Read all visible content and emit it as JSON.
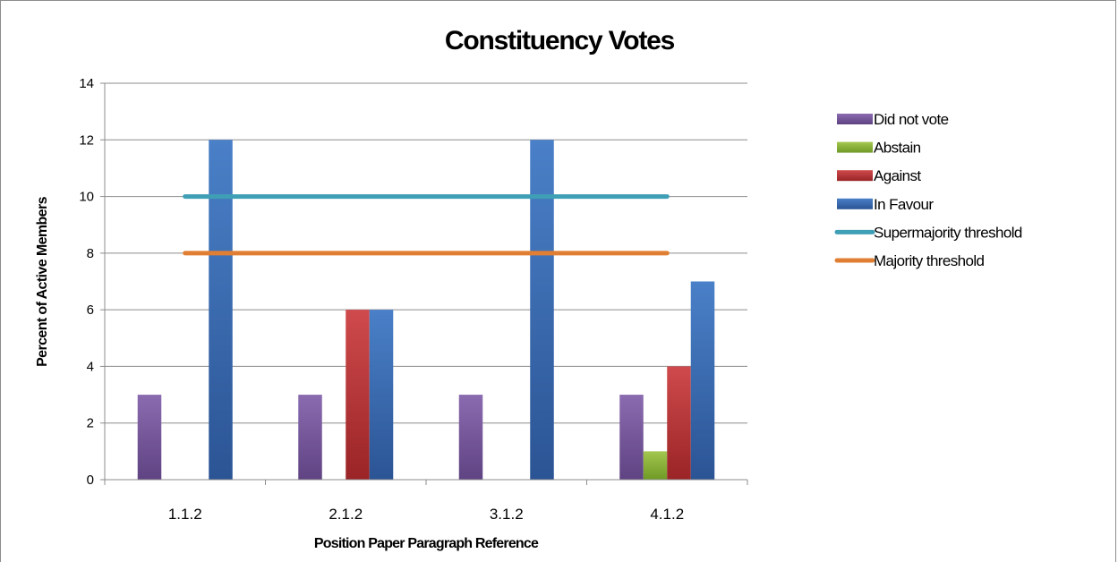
{
  "chart_data": {
    "type": "bar",
    "title": "Constituency Votes",
    "xlabel": "Position Paper Paragraph Reference",
    "ylabel": "Percent of  Active Members",
    "categories": [
      "1.1.2",
      "2.1.2",
      "3.1.2",
      "4.1.2"
    ],
    "ylim": [
      0,
      14
    ],
    "yticks": [
      0,
      2,
      4,
      6,
      8,
      10,
      12,
      14
    ],
    "grid": true,
    "legend_position": "right",
    "series": [
      {
        "name": "Did not vote",
        "kind": "bar",
        "color": "#7b5a9e",
        "values": [
          3,
          3,
          3,
          3
        ]
      },
      {
        "name": "Abstain",
        "kind": "bar",
        "color": "#8fb63c",
        "values": [
          0,
          0,
          0,
          1
        ]
      },
      {
        "name": "Against",
        "kind": "bar",
        "color": "#c0393b",
        "values": [
          0,
          6,
          0,
          4
        ]
      },
      {
        "name": "In Favour",
        "kind": "bar",
        "color": "#3a6fb8",
        "values": [
          12,
          6,
          12,
          7
        ]
      },
      {
        "name": "Supermajority threshold",
        "kind": "line",
        "color": "#3f9fb5",
        "values": [
          10,
          10,
          10,
          10
        ]
      },
      {
        "name": "Majority threshold",
        "kind": "line",
        "color": "#e07f33",
        "values": [
          8,
          8,
          8,
          8
        ]
      }
    ]
  }
}
